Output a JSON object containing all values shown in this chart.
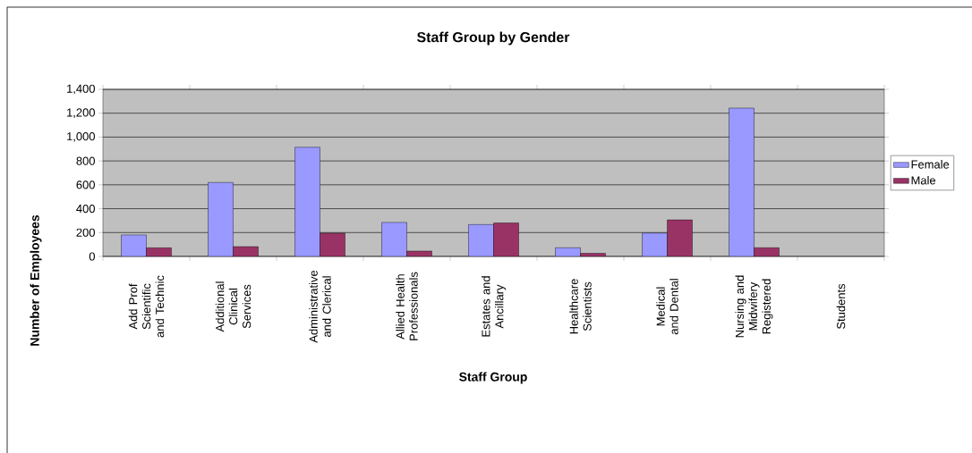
{
  "chart_data": {
    "type": "bar",
    "title": "Staff Group by Gender",
    "xlabel": "Staff Group",
    "ylabel": "Number of Employees",
    "categories": [
      "Add Prof Scientific and Technic",
      "Additional Clinical Services",
      "Administrative and Clerical",
      "Allied Health Professionals",
      "Estates and Ancillary",
      "Healthcare Scientists",
      "Medical and Dental",
      "Nursing and Midwifery Registered",
      "Students"
    ],
    "series": [
      {
        "name": "Female",
        "color": "#9999ff",
        "values": [
          180,
          620,
          915,
          285,
          267,
          73,
          196,
          1243,
          null
        ]
      },
      {
        "name": "Male",
        "color": "#993366",
        "values": [
          72,
          82,
          195,
          45,
          280,
          26,
          306,
          73,
          null
        ]
      }
    ],
    "ylim": [
      0,
      1400
    ],
    "yticks": [
      0,
      200,
      400,
      600,
      800,
      {
        "value": 1000,
        "label": "1,000"
      },
      {
        "value": 1200,
        "label": "1,200"
      },
      {
        "value": 1400,
        "label": "1,400"
      }
    ],
    "grid": "y",
    "legend": "right"
  }
}
